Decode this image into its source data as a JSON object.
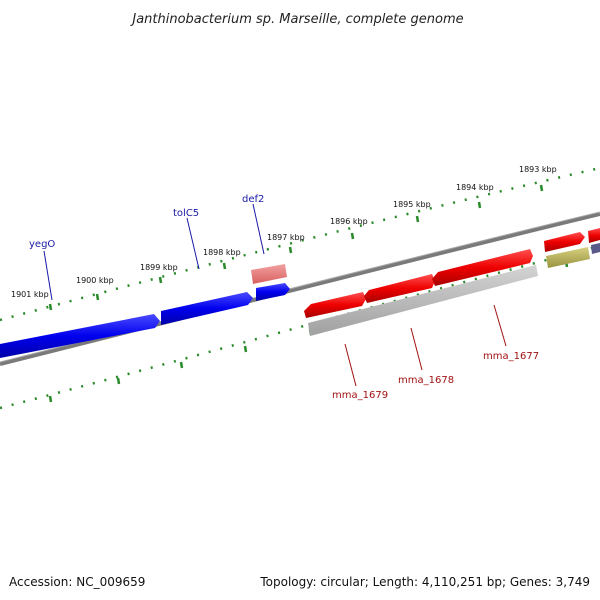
{
  "title": "Janthinobacterium sp. Marseille, complete genome",
  "footer": {
    "accession": "Accession: NC_009659",
    "summary": "Topology: circular; Length: 4,110,251 bp; Genes: 3,749"
  },
  "colors": {
    "forward_gene": "#0000ee",
    "reverse_gene": "#ee0000",
    "rna_gene": "#ee7a7a",
    "tick": "#2a8a2a",
    "backbone": "#7a7a7a",
    "gray_feature": "#b8b8b8",
    "olive_feature": "#b8b060",
    "blue_label": "#1a1aa6",
    "red_label": "#a11212"
  },
  "kbp_labels": [
    "1901 kbp",
    "1900 kbp",
    "1899 kbp",
    "1898 kbp",
    "1897 kbp",
    "1896 kbp",
    "1895 kbp",
    "1894 kbp",
    "1893 kbp"
  ],
  "gene_labels_forward": [
    "yegO",
    "tolC5",
    "def2"
  ],
  "gene_labels_reverse": [
    "mma_1679",
    "mma_1678",
    "mma_1677"
  ]
}
